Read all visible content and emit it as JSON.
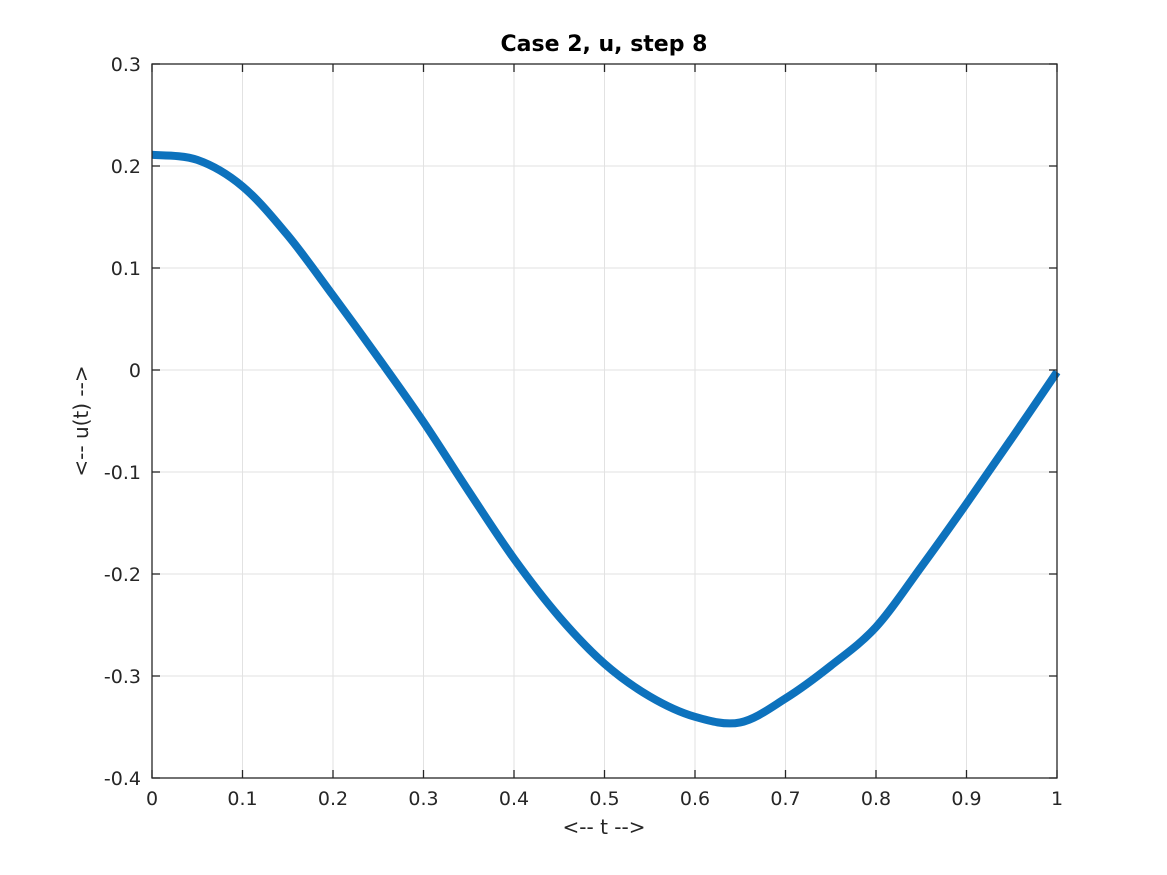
{
  "figure": {
    "background": "#FFFFFF",
    "axes_color": "#262626",
    "grid_color": "#E2E2E2"
  },
  "chart_data": {
    "type": "line",
    "title": "Case 2, u, step 8",
    "xlabel": "<-- t -->",
    "ylabel": "<-- u(t) -->",
    "xlim": [
      0,
      1
    ],
    "ylim": [
      -0.4,
      0.3
    ],
    "xticks": [
      0,
      0.1,
      0.2,
      0.3,
      0.4,
      0.5,
      0.6,
      0.7,
      0.8,
      0.9,
      1
    ],
    "xtick_labels": [
      "0",
      "0.1",
      "0.2",
      "0.3",
      "0.4",
      "0.5",
      "0.6",
      "0.7",
      "0.8",
      "0.9",
      "1"
    ],
    "yticks": [
      -0.4,
      -0.3,
      -0.2,
      -0.1,
      0,
      0.1,
      0.2,
      0.3
    ],
    "ytick_labels": [
      "-0.4",
      "-0.3",
      "-0.2",
      "-0.1",
      "0",
      "0.1",
      "0.2",
      "0.3"
    ],
    "grid": true,
    "legend": null,
    "series": [
      {
        "name": "u",
        "color": "#0D72BD",
        "line_width": 8,
        "x": [
          0,
          0.05,
          0.1,
          0.15,
          0.2,
          0.25,
          0.3,
          0.35,
          0.4,
          0.45,
          0.5,
          0.55,
          0.6,
          0.65,
          0.7,
          0.75,
          0.8,
          0.85,
          0.9,
          0.95,
          1
        ],
        "y": [
          0.211,
          0.206,
          0.18,
          0.132,
          0.073,
          0.012,
          -0.051,
          -0.119,
          -0.185,
          -0.242,
          -0.288,
          -0.32,
          -0.34,
          -0.3455,
          -0.322,
          -0.29,
          -0.252,
          -0.193,
          -0.131,
          -0.067,
          -0.002
        ]
      }
    ]
  }
}
